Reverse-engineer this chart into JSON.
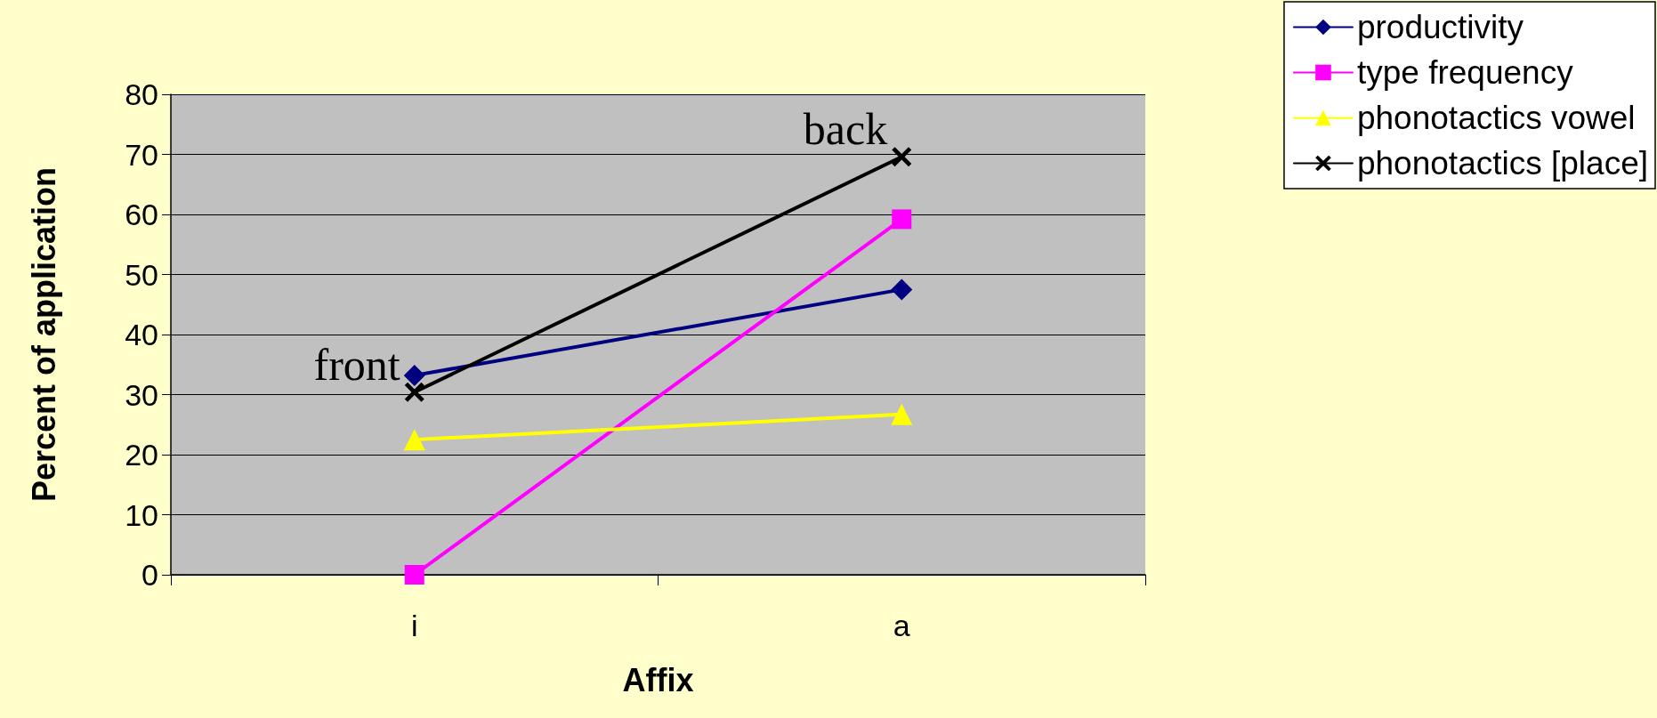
{
  "chart_data": {
    "type": "line",
    "xlabel": "Affix",
    "ylabel": "Percent of application",
    "categories": [
      "i",
      "a"
    ],
    "series": [
      {
        "name": "productivity",
        "color": "#000080",
        "marker": "diamond",
        "values": [
          33.2,
          47.5
        ]
      },
      {
        "name": "type frequency",
        "color": "#ff00ff",
        "marker": "square",
        "values": [
          0,
          59.2
        ]
      },
      {
        "name": "phonotactics vowel",
        "color": "#ffff00",
        "marker": "triangle",
        "values": [
          22.5,
          26.7
        ]
      },
      {
        "name": "phonotactics [place]",
        "color": "#000000",
        "marker": "cross",
        "values": [
          30.4,
          69.6
        ]
      }
    ],
    "annotations": [
      {
        "text": "front",
        "x": "i",
        "y": 30.4
      },
      {
        "text": "back",
        "x": "a",
        "y": 69.6
      }
    ],
    "ylim": [
      0,
      80
    ],
    "yticks": [
      0,
      10,
      20,
      30,
      40,
      50,
      60,
      70,
      80
    ],
    "grid": "y",
    "legend": "top right",
    "line_style": "solid"
  }
}
